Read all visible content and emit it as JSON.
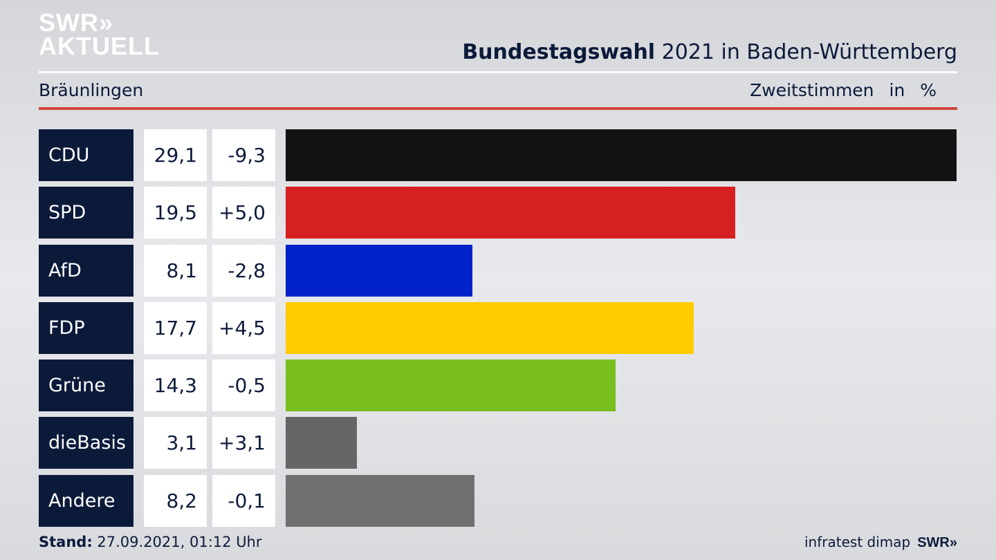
{
  "logo": {
    "line1": "SWR»",
    "line2": "AKTUELL"
  },
  "header": {
    "title_bold": "Bundestagswahl",
    "title_rest": "2021 in Baden-Württemberg",
    "region": "Bräunlingen",
    "metric": "Zweitstimmen",
    "unit": "in %"
  },
  "footer": {
    "stand_label": "Stand:",
    "stand_value": "27.09.2021, 01:12 Uhr",
    "source": "infratest dimap",
    "brand": "SWR»"
  },
  "chart_data": {
    "type": "bar",
    "orientation": "horizontal",
    "title": "Bundestagswahl 2021 in Baden-Württemberg",
    "subtitle": "Bräunlingen – Zweitstimmen in %",
    "categories": [
      "CDU",
      "SPD",
      "AfD",
      "FDP",
      "Grüne",
      "dieBasis",
      "Andere"
    ],
    "values": [
      29.1,
      19.5,
      8.1,
      17.7,
      14.3,
      3.1,
      8.2
    ],
    "value_labels": [
      "29,1",
      "19,5",
      "8,1",
      "17,7",
      "14,3",
      "3,1",
      "8,2"
    ],
    "diff_labels": [
      "-9,3",
      "+5,0",
      "-2,8",
      "+4,5",
      "-0,5",
      "+3,1",
      "-0,1"
    ],
    "diffs": [
      -9.3,
      5.0,
      -2.8,
      4.5,
      -0.5,
      3.1,
      -0.1
    ],
    "colors": [
      "#121212",
      "#d72020",
      "#0022c8",
      "#ffcc00",
      "#78be1e",
      "#666666",
      "#707070"
    ],
    "xlim": [
      0,
      29.1
    ]
  }
}
